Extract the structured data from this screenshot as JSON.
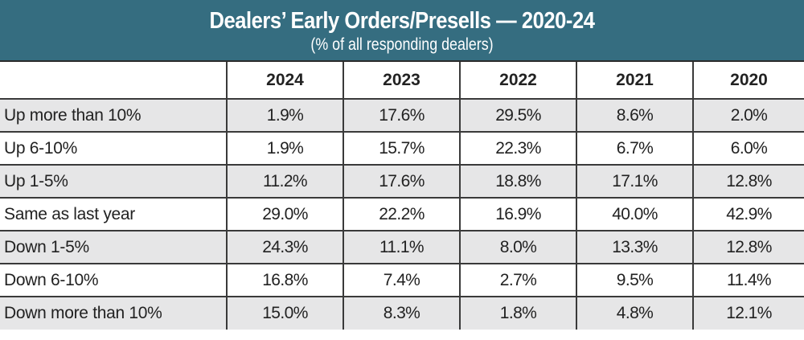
{
  "header": {
    "title": "Dealers’ Early Orders/Presells — 2020-24",
    "subtitle": "(% of all responding dealers)"
  },
  "colors": {
    "banner": "#356d80",
    "shaded_row": "#e6e6e7",
    "grid_line": "#3a3a3a"
  },
  "chart_data": {
    "type": "table",
    "title": "Dealers’ Early Orders/Presells — 2020-24",
    "subtitle": "(% of all responding dealers)",
    "columns": [
      "",
      "2024",
      "2023",
      "2022",
      "2021",
      "2020"
    ],
    "rows": [
      {
        "label": "Up more than 10%",
        "values": [
          "1.9%",
          "17.6%",
          "29.5%",
          "8.6%",
          "2.0%"
        ]
      },
      {
        "label": "Up 6-10%",
        "values": [
          "1.9%",
          "15.7%",
          "22.3%",
          "6.7%",
          "6.0%"
        ]
      },
      {
        "label": "Up 1-5%",
        "values": [
          "11.2%",
          "17.6%",
          "18.8%",
          "17.1%",
          "12.8%"
        ]
      },
      {
        "label": "Same as last year",
        "values": [
          "29.0%",
          "22.2%",
          "16.9%",
          "40.0%",
          "42.9%"
        ]
      },
      {
        "label": "Down 1-5%",
        "values": [
          "24.3%",
          "11.1%",
          "8.0%",
          "13.3%",
          "12.8%"
        ]
      },
      {
        "label": "Down 6-10%",
        "values": [
          "16.8%",
          "7.4%",
          "2.7%",
          "9.5%",
          "11.4%"
        ]
      },
      {
        "label": "Down more than 10%",
        "values": [
          "15.0%",
          "8.3%",
          "1.8%",
          "4.8%",
          "12.1%"
        ]
      }
    ]
  }
}
